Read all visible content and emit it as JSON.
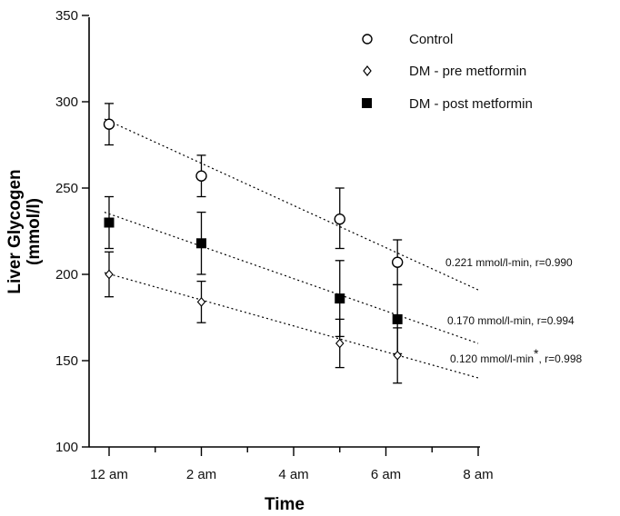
{
  "chart_data": {
    "type": "scatter",
    "title": "",
    "xlabel": "Time",
    "ylabel_line1": "Liver Glycogen",
    "ylabel_line2": "(mmol/l)",
    "x_ticks": [
      "12 am",
      "2 am",
      "4 am",
      "6 am",
      "8 am"
    ],
    "x_range_hours": [
      0,
      8
    ],
    "y_ticks": [
      100,
      150,
      200,
      250,
      300,
      350
    ],
    "ylim": [
      100,
      350
    ],
    "legend_position": "top-right",
    "series": [
      {
        "name": "Control",
        "marker": "open-circle",
        "points": [
          {
            "x": 0,
            "y": 287,
            "err_low": 12,
            "err_high": 12
          },
          {
            "x": 2,
            "y": 257,
            "err_low": 12,
            "err_high": 12
          },
          {
            "x": 5,
            "y": 232,
            "err_low": 17,
            "err_high": 18
          },
          {
            "x": 6.25,
            "y": 207,
            "err_low": 13,
            "err_high": 13
          }
        ],
        "trend": {
          "x_start": -0.1,
          "y_start": 290,
          "x_end": 8,
          "y_end": 191
        },
        "annotation": "0.221 mmol/l-min, r=0.990"
      },
      {
        "name": "DM - pre metformin",
        "marker": "open-diamond",
        "points": [
          {
            "x": 0,
            "y": 200,
            "err_low": 13,
            "err_high": 13
          },
          {
            "x": 2,
            "y": 184,
            "err_low": 12,
            "err_high": 12
          },
          {
            "x": 5,
            "y": 160,
            "err_low": 14,
            "err_high": 14
          },
          {
            "x": 6.25,
            "y": 153,
            "err_low": 16,
            "err_high": 16
          }
        ],
        "trend": {
          "x_start": -0.1,
          "y_start": 201,
          "x_end": 8,
          "y_end": 140
        },
        "annotation": "0.120 mmol/l-min",
        "annotation_mark": "*",
        "annotation_suffix": ", r=0.998"
      },
      {
        "name": "DM - post metformin",
        "marker": "filled-square",
        "points": [
          {
            "x": 0,
            "y": 230,
            "err_low": 15,
            "err_high": 15
          },
          {
            "x": 2,
            "y": 218,
            "err_low": 18,
            "err_high": 18
          },
          {
            "x": 5,
            "y": 186,
            "err_low": 22,
            "err_high": 22
          },
          {
            "x": 6.25,
            "y": 174,
            "err_low": 20,
            "err_high": 20
          }
        ],
        "trend": {
          "x_start": -0.1,
          "y_start": 236,
          "x_end": 8,
          "y_end": 160
        },
        "annotation": "0.170 mmol/l-min, r=0.994"
      }
    ]
  }
}
